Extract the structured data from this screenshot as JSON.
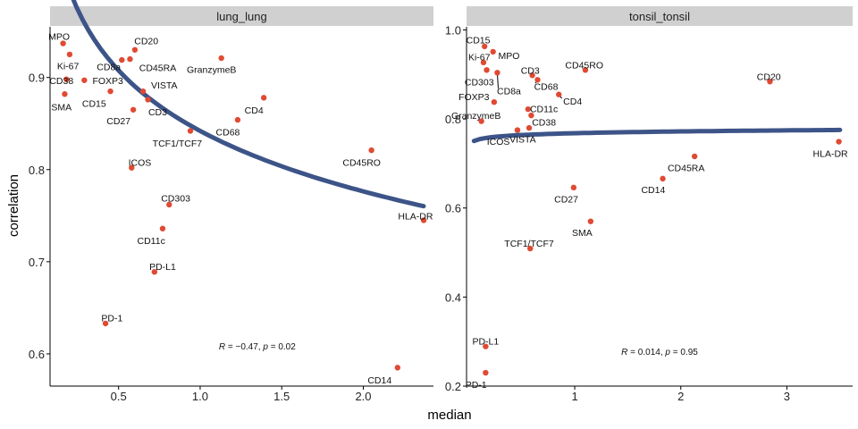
{
  "chart_data": [
    {
      "type": "scatter",
      "panel": "lung_lung",
      "xlabel": "median",
      "ylabel": "correlation",
      "xlim": [
        0.08,
        2.43
      ],
      "ylim": [
        0.565,
        0.955
      ],
      "xticks": [
        0.5,
        1.0,
        1.5,
        2.0
      ],
      "xtick_labels": [
        "0.5",
        "1.0",
        "1.5",
        "2.0"
      ],
      "yticks": [
        0.6,
        0.7,
        0.8,
        0.9
      ],
      "ytick_labels": [
        "0.6",
        "0.7",
        "0.8",
        "0.9"
      ],
      "annotation": {
        "r": "−0.47",
        "p": "0.02",
        "x": 1.35,
        "y": 0.605
      },
      "points": [
        {
          "label": "MPO",
          "x": 0.16,
          "y": 0.937,
          "lx": 0.07,
          "ly": 0.945,
          "anchor": "start"
        },
        {
          "label": "Ki-67",
          "x": 0.2,
          "y": 0.925,
          "lx": 0.19,
          "ly": 0.913,
          "anchor": "middle"
        },
        {
          "label": "CD38",
          "x": 0.18,
          "y": 0.898,
          "lx": 0.15,
          "ly": 0.897,
          "anchor": "middle"
        },
        {
          "label": "SMA",
          "x": 0.17,
          "y": 0.882,
          "lx": 0.15,
          "ly": 0.868,
          "anchor": "middle"
        },
        {
          "label": "FOXP3",
          "x": 0.29,
          "y": 0.897,
          "lx": 0.34,
          "ly": 0.897,
          "anchor": "start"
        },
        {
          "label": "CD8a",
          "x": 0.52,
          "y": 0.919,
          "lx": 0.44,
          "ly": 0.912,
          "anchor": "middle"
        },
        {
          "label": "CD20",
          "x": 0.6,
          "y": 0.93,
          "lx": 0.67,
          "ly": 0.94,
          "anchor": "middle"
        },
        {
          "label": "CD45RA",
          "x": 0.57,
          "y": 0.92,
          "lx": 0.74,
          "ly": 0.911,
          "anchor": "middle"
        },
        {
          "label": "GranzymeB",
          "x": 1.13,
          "y": 0.921,
          "lx": 1.07,
          "ly": 0.909,
          "anchor": "middle"
        },
        {
          "label": "CD15",
          "x": 0.45,
          "y": 0.885,
          "lx": 0.35,
          "ly": 0.872,
          "anchor": "middle"
        },
        {
          "label": "VISTA",
          "x": 0.65,
          "y": 0.885,
          "lx": 0.78,
          "ly": 0.892,
          "anchor": "middle"
        },
        {
          "label": "CD27",
          "x": 0.59,
          "y": 0.865,
          "lx": 0.5,
          "ly": 0.853,
          "anchor": "middle"
        },
        {
          "label": "CD3",
          "x": 0.68,
          "y": 0.876,
          "lx": 0.74,
          "ly": 0.863,
          "anchor": "middle"
        },
        {
          "label": "CD4",
          "x": 1.39,
          "y": 0.878,
          "lx": 1.33,
          "ly": 0.865,
          "anchor": "middle"
        },
        {
          "label": "CD68",
          "x": 1.23,
          "y": 0.854,
          "lx": 1.17,
          "ly": 0.841,
          "anchor": "middle"
        },
        {
          "label": "TCF1/TCF7",
          "x": 0.94,
          "y": 0.842,
          "lx": 0.86,
          "ly": 0.829,
          "anchor": "middle"
        },
        {
          "label": "CD45RO",
          "x": 2.05,
          "y": 0.821,
          "lx": 1.99,
          "ly": 0.808,
          "anchor": "middle"
        },
        {
          "label": "ICOS",
          "x": 0.58,
          "y": 0.802,
          "lx": 0.63,
          "ly": 0.808,
          "anchor": "middle"
        },
        {
          "label": "CD303",
          "x": 0.81,
          "y": 0.762,
          "lx": 0.85,
          "ly": 0.769,
          "anchor": "middle"
        },
        {
          "label": "CD11c",
          "x": 0.77,
          "y": 0.736,
          "lx": 0.7,
          "ly": 0.723,
          "anchor": "middle"
        },
        {
          "label": "HLA-DR",
          "x": 2.37,
          "y": 0.745,
          "lx": 2.32,
          "ly": 0.75,
          "anchor": "middle"
        },
        {
          "label": "PD-L1",
          "x": 0.72,
          "y": 0.689,
          "lx": 0.77,
          "ly": 0.695,
          "anchor": "middle"
        },
        {
          "label": "PD-1",
          "x": 0.42,
          "y": 0.633,
          "lx": 0.46,
          "ly": 0.639,
          "anchor": "middle"
        },
        {
          "label": "CD14",
          "x": 2.21,
          "y": 0.585,
          "lx": 2.1,
          "ly": 0.572,
          "anchor": "middle"
        }
      ],
      "fit": {
        "model": "a + b·ln(x)",
        "x_range": [
          0.13,
          2.37
        ],
        "a": 0.842,
        "b": -0.0947
      }
    },
    {
      "type": "scatter",
      "panel": "tonsil_tonsil",
      "xlabel": "median",
      "ylabel": "correlation",
      "xlim": [
        -0.02,
        3.62
      ],
      "ylim": [
        0.2,
        1.007
      ],
      "xticks": [
        1,
        2,
        3
      ],
      "xtick_labels": [
        "1",
        "2",
        "3"
      ],
      "yticks": [
        0.2,
        0.4,
        0.6,
        0.8,
        1.0
      ],
      "ytick_labels": [
        "0.2",
        "0.4",
        "0.6",
        "0.8",
        "1.0"
      ],
      "annotation": {
        "r": "0.014",
        "p": "0.95",
        "x": 1.8,
        "y": 0.27
      },
      "points": [
        {
          "label": "CD15",
          "x": 0.15,
          "y": 0.963,
          "lx": 0.09,
          "ly": 0.978,
          "anchor": "middle"
        },
        {
          "label": "Ki-67",
          "x": 0.14,
          "y": 0.927,
          "lx": 0.1,
          "ly": 0.94,
          "anchor": "middle"
        },
        {
          "label": "MPO",
          "x": 0.23,
          "y": 0.951,
          "lx": 0.38,
          "ly": 0.943,
          "anchor": "middle"
        },
        {
          "label": "CD303",
          "x": 0.17,
          "y": 0.91,
          "lx": 0.1,
          "ly": 0.884,
          "anchor": "middle"
        },
        {
          "label": "CD8a",
          "x": 0.27,
          "y": 0.904,
          "lx": 0.38,
          "ly": 0.863,
          "anchor": "middle",
          "leader": true
        },
        {
          "label": "CD3",
          "x": 0.6,
          "y": 0.898,
          "lx": 0.58,
          "ly": 0.91,
          "anchor": "middle"
        },
        {
          "label": "CD45RO",
          "x": 1.1,
          "y": 0.91,
          "lx": 1.09,
          "ly": 0.922,
          "anchor": "middle"
        },
        {
          "label": "CD68",
          "x": 0.65,
          "y": 0.888,
          "lx": 0.73,
          "ly": 0.874,
          "anchor": "middle",
          "leader": true
        },
        {
          "label": "CD4",
          "x": 0.85,
          "y": 0.855,
          "lx": 0.98,
          "ly": 0.84,
          "anchor": "middle",
          "leader": true
        },
        {
          "label": "FOXP3",
          "x": 0.24,
          "y": 0.838,
          "lx": 0.05,
          "ly": 0.85,
          "anchor": "middle"
        },
        {
          "label": "CD11c",
          "x": 0.56,
          "y": 0.822,
          "lx": 0.71,
          "ly": 0.823,
          "anchor": "middle"
        },
        {
          "label": "GranzymeB",
          "x": 0.12,
          "y": 0.795,
          "lx": 0.07,
          "ly": 0.808,
          "anchor": "middle"
        },
        {
          "label": "CD38",
          "x": 0.59,
          "y": 0.808,
          "lx": 0.71,
          "ly": 0.793,
          "anchor": "middle"
        },
        {
          "label": "VISTA",
          "x": 0.57,
          "y": 0.78,
          "lx": 0.51,
          "ly": 0.755,
          "anchor": "middle"
        },
        {
          "label": "ICOS",
          "x": 0.46,
          "y": 0.775,
          "lx": 0.28,
          "ly": 0.75,
          "anchor": "middle"
        },
        {
          "label": "CD20",
          "x": 2.84,
          "y": 0.884,
          "lx": 2.83,
          "ly": 0.896,
          "anchor": "middle"
        },
        {
          "label": "HLA-DR",
          "x": 3.49,
          "y": 0.749,
          "lx": 3.41,
          "ly": 0.723,
          "anchor": "middle"
        },
        {
          "label": "CD45RA",
          "x": 2.13,
          "y": 0.716,
          "lx": 2.05,
          "ly": 0.691,
          "anchor": "middle"
        },
        {
          "label": "CD14",
          "x": 1.83,
          "y": 0.666,
          "lx": 1.74,
          "ly": 0.642,
          "anchor": "middle"
        },
        {
          "label": "CD27",
          "x": 0.99,
          "y": 0.646,
          "lx": 0.92,
          "ly": 0.621,
          "anchor": "middle"
        },
        {
          "label": "SMA",
          "x": 1.15,
          "y": 0.57,
          "lx": 1.07,
          "ly": 0.545,
          "anchor": "middle"
        },
        {
          "label": "TCF1/TCF7",
          "x": 0.58,
          "y": 0.509,
          "lx": 0.57,
          "ly": 0.521,
          "anchor": "middle"
        },
        {
          "label": "PD-L1",
          "x": 0.16,
          "y": 0.289,
          "lx": 0.16,
          "ly": 0.301,
          "anchor": "middle"
        },
        {
          "label": "PD-1",
          "x": 0.16,
          "y": 0.23,
          "lx": 0.07,
          "ly": 0.204,
          "anchor": "middle"
        }
      ],
      "fit": {
        "model": "a + b·ln(x)",
        "x_range": [
          0.05,
          3.5
        ],
        "a": 0.768,
        "b": 0.0058
      }
    }
  ],
  "colors": {
    "point": "#e04a33",
    "fit": "#3c5488",
    "strip": "#d0d0d0",
    "axis": "#000000"
  }
}
